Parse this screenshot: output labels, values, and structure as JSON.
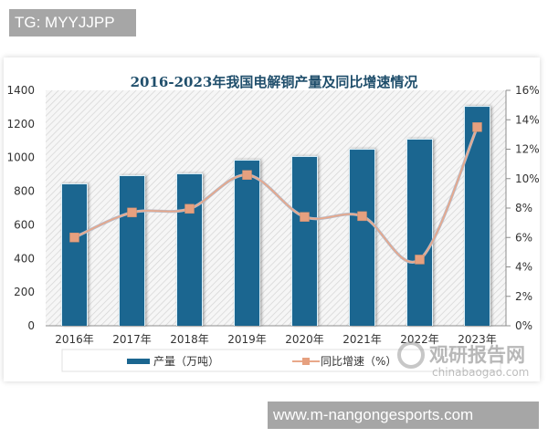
{
  "watermark_top": "TG: MYYJJPP",
  "watermark_bottom": "www.m-nangongesports.com",
  "source_logo": {
    "cn": "观研报告网",
    "en": "chinabaogao.com"
  },
  "colors": {
    "bar": "#1b6690",
    "line": "#e9a88a",
    "marker": "#e6a07f",
    "title": "#1f4e6b"
  },
  "chart_data": {
    "type": "bar",
    "title": "2016-2023年我国电解铜产量及同比增速情况",
    "categories": [
      "2016年",
      "2017年",
      "2018年",
      "2019年",
      "2020年",
      "2021年",
      "2022年",
      "2023年"
    ],
    "series": [
      {
        "name": "产量（万吨）",
        "type": "bar",
        "axis": "left",
        "values": [
          841,
          890,
          901,
          982,
          1004,
          1047,
          1107,
          1302
        ]
      },
      {
        "name": "同比增速（%）",
        "type": "line",
        "axis": "right",
        "values": [
          6.0,
          7.7,
          7.95,
          10.25,
          7.4,
          7.45,
          4.5,
          13.5
        ]
      }
    ],
    "y_left": {
      "min": 0,
      "max": 1400,
      "ticks": [
        "0",
        "200",
        "400",
        "600",
        "800",
        "1000",
        "1200",
        "1400"
      ]
    },
    "y_right": {
      "min": 0,
      "max": 16,
      "ticks": [
        "0%",
        "2%",
        "4%",
        "6%",
        "8%",
        "10%",
        "12%",
        "14%",
        "16%"
      ]
    },
    "xlabel": "",
    "ylabel": "",
    "legend": {
      "position": "bottom",
      "items": [
        "产量（万吨）",
        "同比增速（%）"
      ]
    },
    "grid": false
  }
}
